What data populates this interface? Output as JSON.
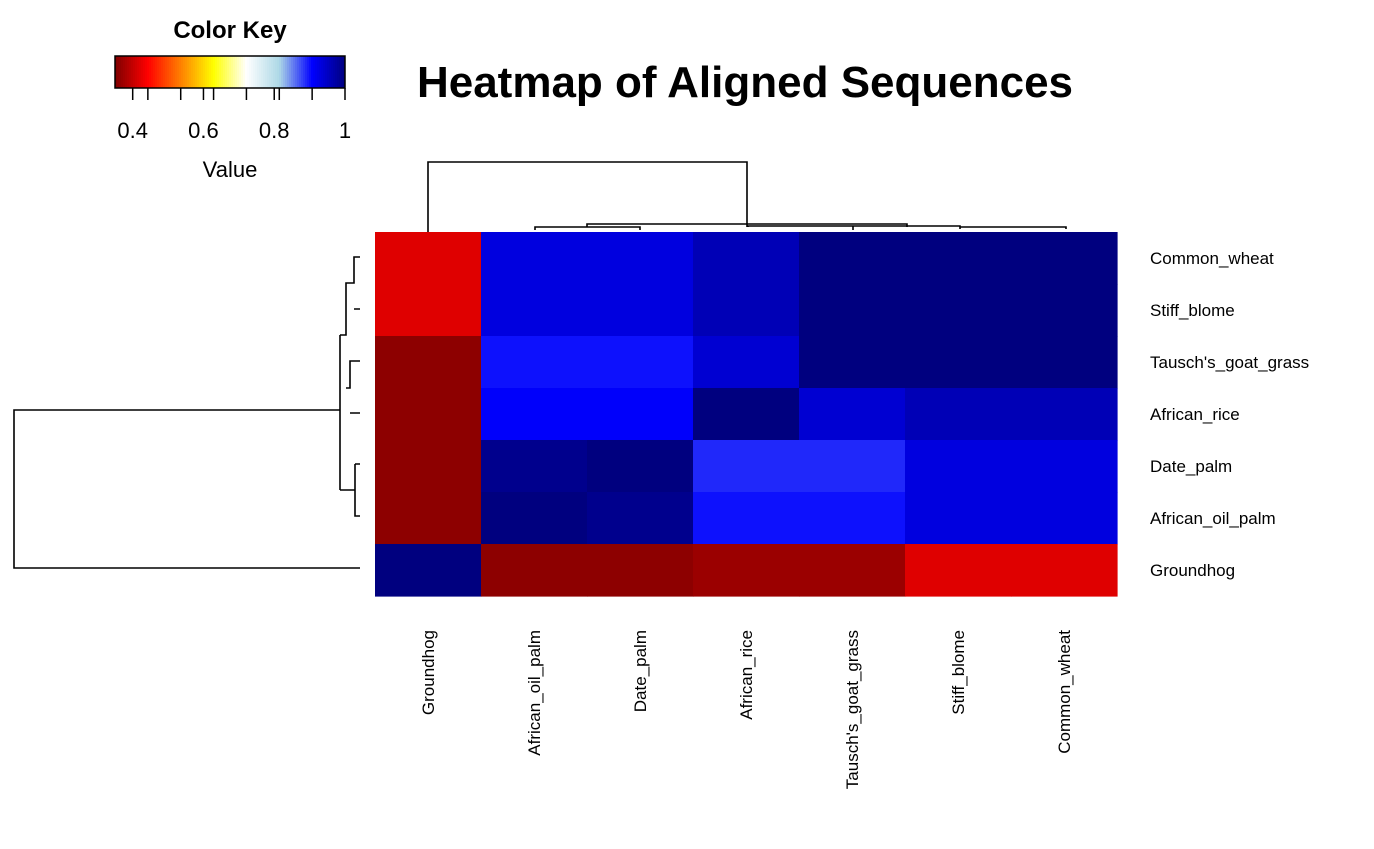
{
  "chart_data": {
    "type": "heatmap",
    "title": "Heatmap of Aligned Sequences",
    "rows": [
      "Common_wheat",
      "Stiff_blome",
      "Tausch's_goat_grass",
      "African_rice",
      "Date_palm",
      "African_oil_palm",
      "Groundhog"
    ],
    "columns": [
      "Groundhog",
      "African_oil_palm",
      "Date_palm",
      "African_rice",
      "Tausch's_goat_grass",
      "Stiff_blome",
      "Common_wheat"
    ],
    "values": [
      [
        0.42,
        0.93,
        0.93,
        0.96,
        1.0,
        1.0,
        1.0
      ],
      [
        0.42,
        0.93,
        0.93,
        0.96,
        1.0,
        1.0,
        1.0
      ],
      [
        0.36,
        0.9,
        0.9,
        0.94,
        1.0,
        1.0,
        1.0
      ],
      [
        0.36,
        0.91,
        0.91,
        1.0,
        0.94,
        0.96,
        0.96
      ],
      [
        0.36,
        0.99,
        1.0,
        0.89,
        0.89,
        0.93,
        0.93
      ],
      [
        0.36,
        1.0,
        0.99,
        0.9,
        0.9,
        0.93,
        0.93
      ],
      [
        1.0,
        0.36,
        0.36,
        0.37,
        0.37,
        0.42,
        0.42
      ]
    ],
    "color_key": {
      "title": "Color Key",
      "xlabel": "Value",
      "range": [
        0.35,
        1.0
      ],
      "ticks": [
        "0.4",
        "0.6",
        "0.8",
        "1"
      ],
      "tick_values": [
        0.4,
        0.6,
        0.8,
        1.0
      ],
      "colors": [
        "#7f0000",
        "#ff0000",
        "#ff8000",
        "#ffff00",
        "#ffffff",
        "#add8e6",
        "#0000ff",
        "#00007f"
      ]
    }
  }
}
